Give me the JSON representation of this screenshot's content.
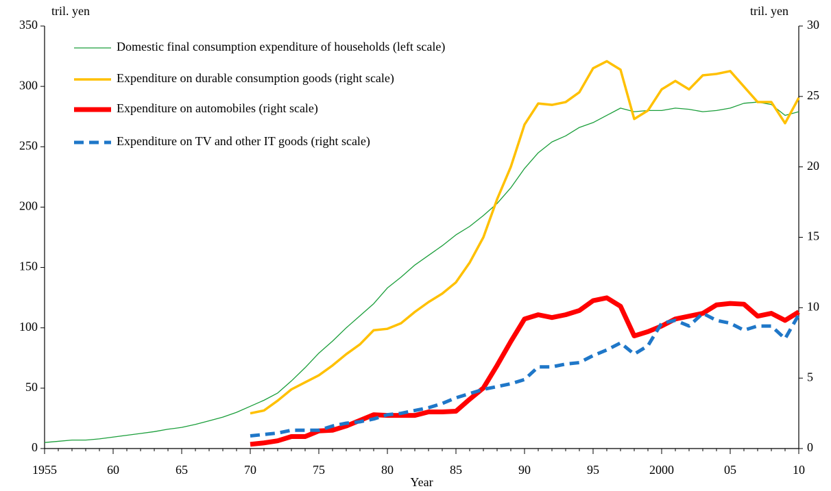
{
  "chart_data": {
    "type": "line",
    "y_axis_title": "tril. yen",
    "y2_axis_title": "tril. yen",
    "x_axis_title": "Year",
    "x": [
      1955,
      1956,
      1957,
      1958,
      1959,
      1960,
      1961,
      1962,
      1963,
      1964,
      1965,
      1966,
      1967,
      1968,
      1969,
      1970,
      1971,
      1972,
      1973,
      1974,
      1975,
      1976,
      1977,
      1978,
      1979,
      1980,
      1981,
      1982,
      1983,
      1984,
      1985,
      1986,
      1987,
      1988,
      1989,
      1990,
      1991,
      1992,
      1993,
      1994,
      1995,
      1996,
      1997,
      1998,
      1999,
      2000,
      2001,
      2002,
      2003,
      2004,
      2005,
      2006,
      2007,
      2008,
      2009,
      2010
    ],
    "xlim": [
      1955,
      2010
    ],
    "xticks": [
      1955,
      {
        "value": 1960,
        "label": "60"
      },
      {
        "value": 1965,
        "label": "65"
      },
      {
        "value": 1970,
        "label": "70"
      },
      {
        "value": 1975,
        "label": "75"
      },
      {
        "value": 1980,
        "label": "80"
      },
      {
        "value": 1985,
        "label": "85"
      },
      {
        "value": 1990,
        "label": "90"
      },
      {
        "value": 1995,
        "label": "95"
      },
      2000,
      {
        "value": 2005,
        "label": "05"
      },
      {
        "value": 2010,
        "label": "10"
      }
    ],
    "ylim": [
      0,
      350
    ],
    "yticks": [
      0,
      50,
      100,
      150,
      200,
      250,
      300,
      350
    ],
    "y2lim": [
      0,
      30
    ],
    "y2ticks": [
      0,
      5,
      10,
      15,
      20,
      25,
      30
    ],
    "legend": "upper left",
    "series": [
      {
        "name": "Domestic final consumption expenditure of households (left scale)",
        "color": "#1a9e3a",
        "values": [
          5,
          6,
          7,
          7,
          8,
          9.5,
          11,
          12.5,
          14,
          16,
          17.5,
          20,
          23,
          26,
          30,
          35,
          40,
          46,
          56,
          67,
          79,
          89,
          100,
          110,
          120,
          133,
          142,
          152,
          160,
          168,
          177,
          184,
          193,
          203,
          216,
          232,
          245,
          254,
          259,
          266,
          270,
          276,
          282,
          279,
          280,
          280,
          282,
          281,
          279,
          280,
          282,
          286,
          287,
          285,
          276,
          279
        ]
      },
      {
        "name": "Expenditure on durable consumption goods (right scale)",
        "color": "#ffc000",
        "axis": "y2",
        "values": [
          null,
          null,
          null,
          null,
          null,
          null,
          null,
          null,
          null,
          null,
          null,
          null,
          null,
          null,
          null,
          2.5,
          2.7,
          3.4,
          4.2,
          4.7,
          5.2,
          5.9,
          6.7,
          7.4,
          8.4,
          8.5,
          8.9,
          9.7,
          10.4,
          11.0,
          11.8,
          13.2,
          15.0,
          17.7,
          20.0,
          23.0,
          24.5,
          24.4,
          24.6,
          25.3,
          27.0,
          27.5,
          26.9,
          23.4,
          24.0,
          25.5,
          26.1,
          25.5,
          26.5,
          26.6,
          26.8,
          25.7,
          24.6,
          24.6,
          23.1,
          24.9
        ]
      },
      {
        "name": "Expenditure on automobiles (right scale)",
        "color": "#ff0000",
        "axis": "y2",
        "values": [
          null,
          null,
          null,
          null,
          null,
          null,
          null,
          null,
          null,
          null,
          null,
          null,
          null,
          null,
          null,
          0.3,
          0.4,
          0.55,
          0.85,
          0.85,
          1.25,
          1.3,
          1.6,
          2.0,
          2.4,
          2.35,
          2.35,
          2.35,
          2.6,
          2.6,
          2.65,
          3.5,
          4.3,
          5.9,
          7.6,
          9.2,
          9.5,
          9.3,
          9.5,
          9.8,
          10.5,
          10.7,
          10.1,
          8.0,
          8.3,
          8.7,
          9.2,
          9.4,
          9.6,
          10.2,
          10.3,
          10.25,
          9.4,
          9.6,
          9.1,
          9.7
        ]
      },
      {
        "name": "Expenditure on TV and other IT goods (right scale)",
        "color": "#1f77c8",
        "axis": "y2",
        "values": [
          null,
          null,
          null,
          null,
          null,
          null,
          null,
          null,
          null,
          null,
          null,
          null,
          null,
          null,
          null,
          0.9,
          1.0,
          1.1,
          1.3,
          1.3,
          1.3,
          1.6,
          1.8,
          1.9,
          2.1,
          2.4,
          2.5,
          2.7,
          2.9,
          3.2,
          3.6,
          3.9,
          4.2,
          4.4,
          4.6,
          4.9,
          5.8,
          5.8,
          6.0,
          6.1,
          6.6,
          7.0,
          7.5,
          6.7,
          7.3,
          8.9,
          9.1,
          8.7,
          9.6,
          9.1,
          8.9,
          8.4,
          8.7,
          8.7,
          7.8,
          9.5
        ]
      }
    ]
  }
}
